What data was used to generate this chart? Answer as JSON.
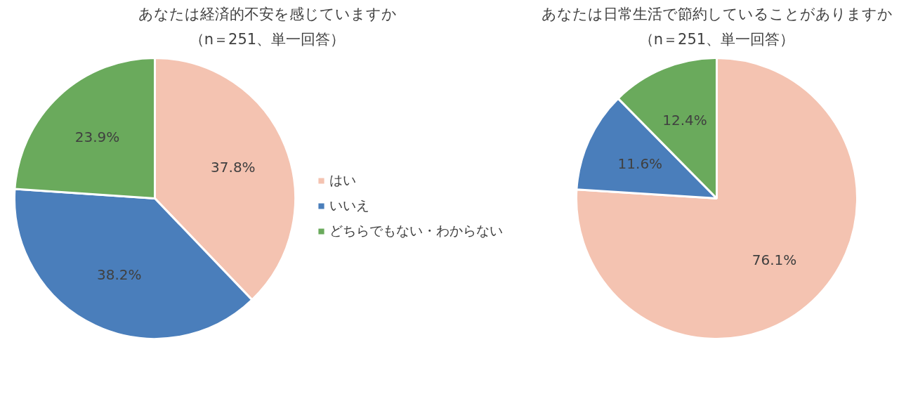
{
  "chart_data": [
    {
      "type": "pie",
      "title": "あなたは経済的不安を感じていますか",
      "subtitle": "（n＝251、単一回答）",
      "categories": [
        "はい",
        "いいえ",
        "どちらでもない・わからない"
      ],
      "values": [
        37.8,
        38.2,
        23.9
      ],
      "value_labels": [
        "37.8%",
        "38.2%",
        "23.9%"
      ],
      "colors": [
        "#f4c3b1",
        "#4a7ebb",
        "#6aaa5c"
      ],
      "legend": "right"
    },
    {
      "type": "pie",
      "title": "あなたは日常生活で節約していることがありますか",
      "subtitle": "（n＝251、単一回答）",
      "categories": [
        null,
        null,
        null
      ],
      "values": [
        76.1,
        11.6,
        12.4
      ],
      "value_labels": [
        "76.1%",
        "11.6%",
        "12.4%"
      ],
      "colors": [
        "#f4c3b1",
        "#4a7ebb",
        "#6aaa5c"
      ],
      "legend": false
    }
  ]
}
